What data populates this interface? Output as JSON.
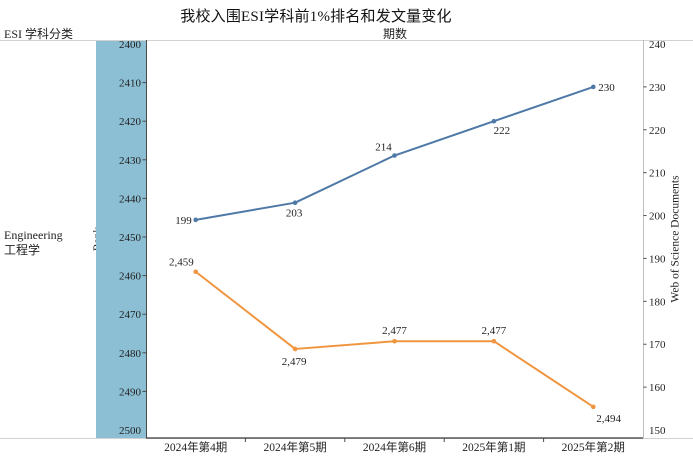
{
  "title": "我校入围ESI学科前1%排名和发文量变化",
  "header": {
    "left_label": "ESI 学科分类",
    "x_axis_title": "期数"
  },
  "subject": {
    "name_en": "Engineering",
    "name_zh": "工程学"
  },
  "colors": {
    "documents_line": "#4e79a7",
    "rank_line": "#f0953f",
    "rank_band": "#8cbfd4",
    "axis_dark": "#4a4a4a",
    "axis_light": "#d2d2d2",
    "tick_text": "#1f1f1f"
  },
  "chart_data": {
    "type": "line",
    "title": "我校入围ESI学科前1%排名和发文量变化",
    "x_axis_title": "期数",
    "categories": [
      "2024年第4期",
      "2024年第5期",
      "2024年第6期",
      "2025年第1期",
      "2025年第2期"
    ],
    "series": [
      {
        "name": "Web of Science Documents",
        "axis": "right",
        "color": "#4e79a7",
        "values": [
          199,
          203,
          214,
          222,
          230
        ],
        "labels": [
          "199",
          "203",
          "214",
          "222",
          "230"
        ],
        "label_offsets": [
          [
            -4,
            4,
            "end"
          ],
          [
            -1,
            14,
            "middle"
          ],
          [
            -11,
            -5,
            "middle"
          ],
          [
            8,
            13,
            "middle"
          ],
          [
            5,
            4,
            "start"
          ]
        ]
      },
      {
        "name": "Rank",
        "axis": "left",
        "color": "#f0953f",
        "values": [
          2459,
          2479,
          2477,
          2477,
          2494
        ],
        "labels": [
          "2,459",
          "2,479",
          "2,477",
          "2,477",
          "2,494"
        ],
        "label_offsets": [
          [
            -2,
            -6,
            "end"
          ],
          [
            -1,
            16,
            "middle"
          ],
          [
            0,
            -7,
            "middle"
          ],
          [
            0,
            -7,
            "middle"
          ],
          [
            3,
            15,
            "start"
          ]
        ]
      }
    ],
    "left_axis": {
      "label": "Rank",
      "min": 2400,
      "max": 2500,
      "inverted": true,
      "ticks": [
        2400,
        2410,
        2420,
        2430,
        2440,
        2450,
        2460,
        2470,
        2480,
        2490,
        2500
      ]
    },
    "right_axis": {
      "label": "Web of Science Documents",
      "min": 150,
      "max": 240,
      "ticks": [
        240,
        230,
        220,
        210,
        200,
        190,
        180,
        170,
        160,
        150
      ]
    },
    "grid": false,
    "legend": "none"
  }
}
